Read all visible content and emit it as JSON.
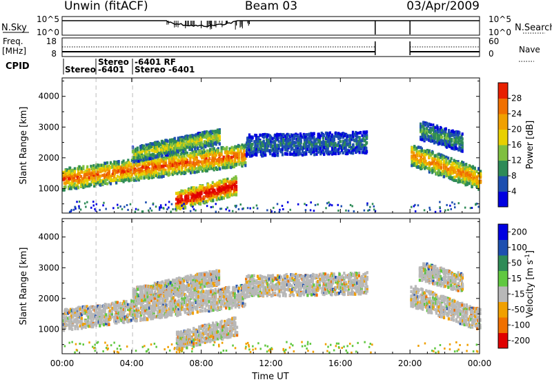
{
  "header": {
    "station": "Unwin (fitACF)",
    "beam": "Beam 03",
    "date": "03/Apr/2009"
  },
  "top_panel": {
    "left_label": "N.Sky",
    "right_label": "N.Search",
    "left_ticks": [
      "10^5",
      "10^0"
    ],
    "right_ticks": [
      "10^5",
      "10^0"
    ]
  },
  "freq_panel": {
    "left_label_1": "Freq.",
    "left_label_2": "[MHz]",
    "left_ticks": [
      "18",
      "8"
    ],
    "right_label": "Nave",
    "right_ticks": [
      "60",
      "0"
    ]
  },
  "cpid": {
    "label": "CPID",
    "entries": [
      {
        "text": "Stereo",
        "row": 2
      },
      {
        "text": "Stereo",
        "row": 1
      },
      {
        "text": "-6401",
        "row": 2
      },
      {
        "text": "-6401 RF",
        "row": 1
      },
      {
        "text": "Stereo -6401",
        "row": 2
      }
    ]
  },
  "colors": {
    "power_scale": [
      "#0000e0",
      "#1d4fb0",
      "#2e8b57",
      "#7fbf3f",
      "#e8d000",
      "#f0a000",
      "#f07000",
      "#e82000",
      "#e00000"
    ],
    "velocity_scale": [
      "#e00000",
      "#f07000",
      "#f0a000",
      "#b8b8b8",
      "#60c840",
      "#2e8b57",
      "#1d4fb0",
      "#0000e0"
    ],
    "ground_scatter": "#b8b8b8"
  },
  "chart_data": [
    {
      "type": "heatmap",
      "name": "power",
      "ylabel": "Slant Range [km]",
      "yticks": [
        "1000",
        "2000",
        "3000",
        "4000"
      ],
      "ylim": [
        200,
        4600
      ],
      "xlim": [
        "00:00",
        "24:00"
      ],
      "data_gap": [
        "18:00",
        "20:00"
      ],
      "colorbar_label": "Power [dB]",
      "colorbar_ticks": [
        "4",
        "8",
        "12",
        "16",
        "20",
        "24",
        "28"
      ],
      "bands": [
        {
          "start": 0.0,
          "end": 10.5,
          "range_start": 1300,
          "range_end": 2100,
          "width": 350,
          "level": 0.72
        },
        {
          "start": 4.0,
          "end": 9.0,
          "range_start": 2100,
          "range_end": 2700,
          "width": 250,
          "level": 0.45
        },
        {
          "start": 6.5,
          "end": 10.0,
          "range_start": 600,
          "range_end": 1100,
          "width": 300,
          "level": 0.95
        },
        {
          "start": 10.5,
          "end": 17.5,
          "range_start": 2400,
          "range_end": 2500,
          "width": 350,
          "level": 0.22
        },
        {
          "start": 20.0,
          "end": 24.0,
          "range_start": 2100,
          "range_end": 1300,
          "width": 350,
          "level": 0.65
        },
        {
          "start": 20.5,
          "end": 23.0,
          "range_start": 2900,
          "range_end": 2500,
          "width": 300,
          "level": 0.3
        }
      ]
    },
    {
      "type": "heatmap",
      "name": "velocity",
      "ylabel": "Slant Range [km]",
      "xlabel": "Time UT",
      "yticks": [
        "1000",
        "2000",
        "3000",
        "4000"
      ],
      "xticks": [
        "00:00",
        "04:00",
        "08:00",
        "12:00",
        "16:00",
        "20:00",
        "00:00"
      ],
      "ylim": [
        200,
        4600
      ],
      "xlim": [
        "00:00",
        "24:00"
      ],
      "data_gap": [
        "18:00",
        "20:00"
      ],
      "colorbar_label": "Velocity [m s^-1]",
      "colorbar_ticks": [
        "200",
        "100",
        "50",
        "15",
        "-15",
        "-50",
        "-100",
        "-200"
      ]
    }
  ]
}
